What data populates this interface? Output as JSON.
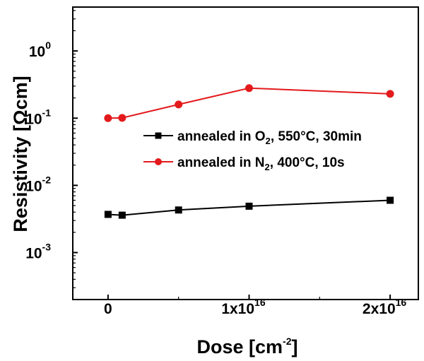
{
  "chart_data": {
    "type": "line",
    "xlabel": "Dose [cm",
    "xlabel_sup": "-2",
    "xlabel_suffix": "]",
    "ylabel": "Resistivity [Ωcm]",
    "y_scale": "log",
    "xlim": [
      -2500000000000000.0,
      2.2e+16
    ],
    "ylim": [
      0.0002,
      4.5
    ],
    "x_ticks": [
      {
        "value": 0,
        "base": "0",
        "sup": ""
      },
      {
        "value": 1e+16,
        "base": "1x10",
        "sup": "16"
      },
      {
        "value": 2e+16,
        "base": "2x10",
        "sup": "16"
      }
    ],
    "y_ticks": [
      {
        "value": 1,
        "base": "10",
        "sup": "0"
      },
      {
        "value": 0.1,
        "base": "10",
        "sup": "-1"
      },
      {
        "value": 0.01,
        "base": "10",
        "sup": "-2"
      },
      {
        "value": 0.001,
        "base": "10",
        "sup": "-3"
      }
    ],
    "legend_position": "upper-right",
    "series": [
      {
        "legend_parts": [
          "annealed in O",
          "2",
          ", 550°C, 30min"
        ],
        "color": "#000000",
        "marker": "square",
        "x": [
          0,
          1000000000000000.0,
          5000000000000000.0,
          1e+16,
          2e+16
        ],
        "y": [
          0.0037,
          0.0036,
          0.0043,
          0.0049,
          0.006
        ]
      },
      {
        "legend_parts": [
          "annealed in N",
          "2",
          ", 400°C, 10s"
        ],
        "color": "#e31a1c",
        "marker": "circle",
        "x": [
          0,
          1000000000000000.0,
          5000000000000000.0,
          1e+16,
          2e+16
        ],
        "y": [
          0.1,
          0.101,
          0.16,
          0.28,
          0.23
        ]
      }
    ]
  }
}
